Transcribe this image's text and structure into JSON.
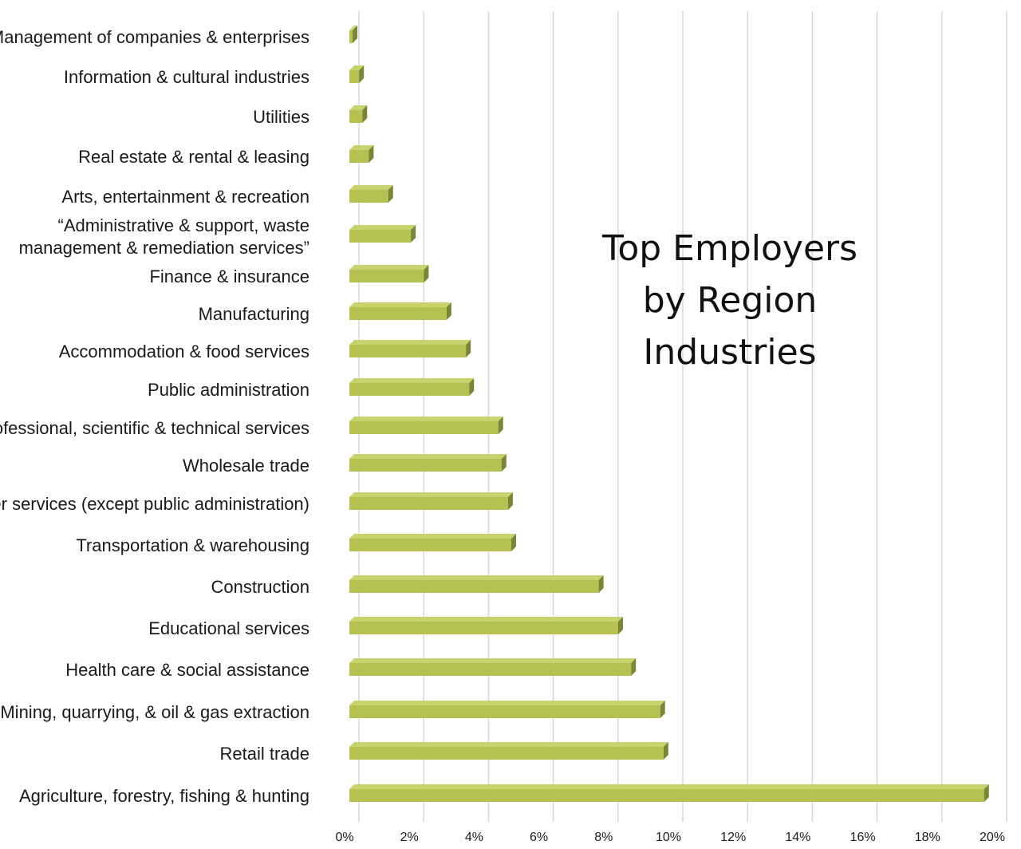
{
  "chart_data": {
    "type": "bar",
    "orientation": "horizontal",
    "title_lines": [
      "Top Employers",
      "by Region",
      "Industries"
    ],
    "categories": [
      "Management of companies & enterprises",
      "Information & cultural industries",
      "Utilities",
      "Real estate & rental & leasing",
      "Arts, entertainment & recreation",
      "“Administrative & support, waste management & remediation services”",
      "Finance & insurance",
      "Manufacturing",
      "Accommodation & food services",
      "Public administration",
      "Professional, scientific & technical services",
      "Wholesale trade",
      "Other services (except public administration)",
      "Transportation & warehousing",
      "Construction",
      "Educational services",
      "Health care & social assistance",
      "Mining, quarrying, & oil & gas extraction",
      "Retail trade",
      "Agriculture, forestry, fishing & hunting"
    ],
    "category_label_lines": [
      [
        "Management of companies & enterprises"
      ],
      [
        "Information & cultural industries"
      ],
      [
        "Utilities"
      ],
      [
        "Real estate & rental & leasing"
      ],
      [
        "Arts, entertainment & recreation"
      ],
      [
        "“Administrative & support, waste",
        "management & remediation services”"
      ],
      [
        "Finance & insurance"
      ],
      [
        "Manufacturing"
      ],
      [
        "Accommodation & food services"
      ],
      [
        "Public administration"
      ],
      [
        "Professional, scientific & technical services"
      ],
      [
        "Wholesale trade"
      ],
      [
        "Other services (except public administration)"
      ],
      [
        "Transportation & warehousing"
      ],
      [
        "Construction"
      ],
      [
        "Educational services"
      ],
      [
        "Health care & social assistance"
      ],
      [
        "Mining, quarrying, & oil & gas extraction"
      ],
      [
        "Retail trade"
      ],
      [
        "Agriculture, forestry, fishing & hunting"
      ]
    ],
    "values": [
      0.1,
      0.3,
      0.4,
      0.6,
      1.2,
      1.9,
      2.3,
      3.0,
      3.6,
      3.7,
      4.6,
      4.7,
      4.9,
      5.0,
      7.7,
      8.3,
      8.7,
      9.6,
      9.7,
      19.6
    ],
    "xlim": [
      0,
      20
    ],
    "ticks": [
      0,
      2,
      4,
      6,
      8,
      10,
      12,
      14,
      16,
      18,
      20
    ],
    "tick_labels": [
      "0%",
      "2%",
      "4%",
      "6%",
      "8%",
      "10%",
      "12%",
      "14%",
      "16%",
      "18%",
      "20%"
    ],
    "grid": "vertical",
    "legend": "none",
    "colors": {
      "bar_front": "#b5c150",
      "bar_top": "#c9d36e",
      "bar_side": "#7a8535",
      "grid": "#d9d9d9"
    }
  }
}
